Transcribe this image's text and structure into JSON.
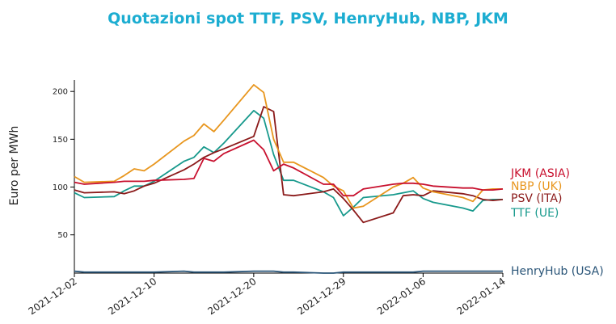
{
  "chart_data": {
    "type": "line",
    "title": "Quotazioni spot TTF, PSV, HenryHub, NBP, JKM",
    "title_color": "#1cadd1",
    "ylabel": "Euro per MWh",
    "xlabel": "",
    "ylim": [
      10,
      212
    ],
    "yticks": [
      50,
      100,
      150,
      200
    ],
    "xlim": [
      "2021-12-02",
      "2022-01-14"
    ],
    "xticks": [
      "2021-12-02",
      "2021-12-10",
      "2021-12-20",
      "2021-12-29",
      "2022-01-06",
      "2022-01-14"
    ],
    "grid": false,
    "legend": "inline labels at right end of lines",
    "x": [
      "2021-12-02",
      "2021-12-03",
      "2021-12-06",
      "2021-12-07",
      "2021-12-08",
      "2021-12-09",
      "2021-12-10",
      "2021-12-13",
      "2021-12-14",
      "2021-12-15",
      "2021-12-16",
      "2021-12-17",
      "2021-12-20",
      "2021-12-21",
      "2021-12-22",
      "2021-12-23",
      "2021-12-24",
      "2021-12-27",
      "2021-12-28",
      "2021-12-29",
      "2021-12-30",
      "2021-12-31",
      "2022-01-03",
      "2022-01-04",
      "2022-01-05",
      "2022-01-06",
      "2022-01-07",
      "2022-01-10",
      "2022-01-11",
      "2022-01-12",
      "2022-01-13",
      "2022-01-14"
    ],
    "series": [
      {
        "name": "JKM (ASIA)",
        "color": "#c8102e",
        "values": [
          105,
          103,
          105,
          106,
          106,
          106,
          107,
          108,
          109,
          130,
          127,
          135,
          149,
          139,
          117,
          124,
          120,
          103,
          103,
          91,
          91,
          98,
          103,
          104,
          104,
          103,
          101,
          99,
          99,
          97,
          97,
          98
        ]
      },
      {
        "name": "NBP (UK)",
        "color": "#e8961e",
        "values": [
          111,
          105,
          106,
          112,
          119,
          117,
          124,
          148,
          154,
          166,
          158,
          170,
          207,
          199,
          150,
          126,
          126,
          110,
          101,
          96,
          78,
          80,
          100,
          104,
          110,
          99,
          95,
          89,
          85,
          97,
          98,
          98
        ]
      },
      {
        "name": "PSV (ITA)",
        "color": "#8b1a1a",
        "values": [
          97,
          94,
          95,
          93,
          96,
          101,
          104,
          118,
          124,
          131,
          136,
          140,
          153,
          184,
          179,
          92,
          91,
          95,
          98,
          88,
          76,
          63,
          73,
          91,
          92,
          91,
          96,
          93,
          91,
          87,
          86,
          87
        ]
      },
      {
        "name": "TTF (UE)",
        "color": "#17998c",
        "values": [
          94,
          89,
          90,
          96,
          101,
          101,
          106,
          127,
          131,
          142,
          136,
          146,
          180,
          172,
          134,
          107,
          107,
          95,
          89,
          70,
          79,
          89,
          92,
          94,
          96,
          88,
          84,
          78,
          75,
          86,
          87,
          87
        ]
      },
      {
        "name": "HenryHub (USA)",
        "color": "#2a5578",
        "values": [
          12,
          11,
          11,
          11,
          11,
          11,
          11,
          12,
          11,
          11,
          11,
          11,
          12,
          12,
          12,
          11,
          11,
          10,
          10,
          11,
          11,
          11,
          11,
          11,
          11,
          12,
          12,
          12,
          12,
          12,
          12,
          12
        ]
      }
    ]
  }
}
